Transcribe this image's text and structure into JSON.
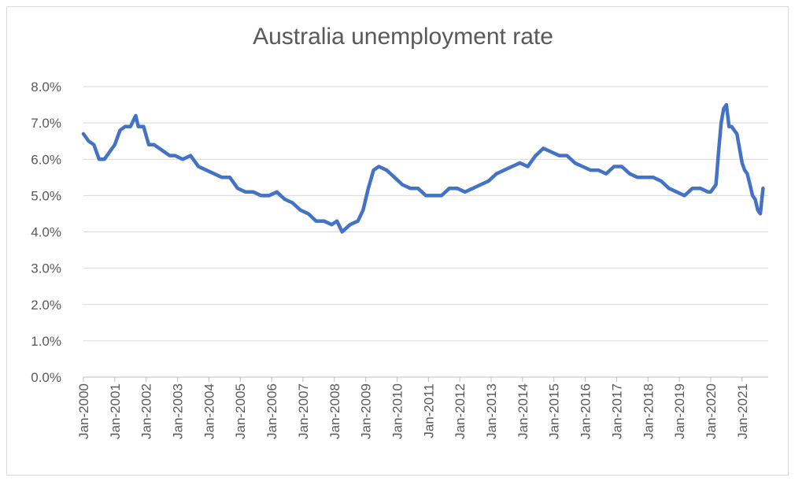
{
  "chart_data": {
    "type": "line",
    "title": "Australia unemployment rate",
    "xlabel": "",
    "ylabel": "",
    "ylim": [
      0,
      8
    ],
    "y_ticks": [
      "0.0%",
      "1.0%",
      "2.0%",
      "3.0%",
      "4.0%",
      "5.0%",
      "6.0%",
      "7.0%",
      "8.0%"
    ],
    "x_ticks": [
      "Jan-2000",
      "Jan-2001",
      "Jan-2002",
      "Jan-2003",
      "Jan-2004",
      "Jan-2005",
      "Jan-2006",
      "Jan-2007",
      "Jan-2008",
      "Jan-2009",
      "Jan-2010",
      "Jan-2011",
      "Jan-2012",
      "Jan-2013",
      "Jan-2014",
      "Jan-2015",
      "Jan-2016",
      "Jan-2017",
      "Jan-2018",
      "Jan-2019",
      "Jan-2020",
      "Jan-2021"
    ],
    "grid": true,
    "legend": "none",
    "color": "#4472c4",
    "series": [
      {
        "x": [
          "2000-01",
          "2000-03",
          "2000-05",
          "2000-07",
          "2000-09",
          "2000-11",
          "2001-01",
          "2001-03",
          "2001-05",
          "2001-07",
          "2001-09",
          "2001-10",
          "2001-12",
          "2002-02",
          "2002-04",
          "2002-06",
          "2002-08",
          "2002-10",
          "2002-12",
          "2003-03",
          "2003-06",
          "2003-09",
          "2003-12",
          "2004-03",
          "2004-06",
          "2004-09",
          "2004-12",
          "2005-03",
          "2005-06",
          "2005-09",
          "2005-12",
          "2006-03",
          "2006-06",
          "2006-09",
          "2006-12",
          "2007-03",
          "2007-06",
          "2007-09",
          "2007-12",
          "2008-02",
          "2008-04",
          "2008-07",
          "2008-10",
          "2008-12",
          "2009-02",
          "2009-04",
          "2009-06",
          "2009-09",
          "2009-12",
          "2010-03",
          "2010-06",
          "2010-09",
          "2010-12",
          "2011-03",
          "2011-06",
          "2011-09",
          "2011-12",
          "2012-03",
          "2012-06",
          "2012-09",
          "2012-12",
          "2013-03",
          "2013-06",
          "2013-09",
          "2013-12",
          "2014-03",
          "2014-06",
          "2014-09",
          "2014-12",
          "2015-03",
          "2015-06",
          "2015-09",
          "2015-12",
          "2016-03",
          "2016-06",
          "2016-09",
          "2016-12",
          "2017-03",
          "2017-06",
          "2017-09",
          "2017-12",
          "2018-03",
          "2018-06",
          "2018-09",
          "2018-12",
          "2019-03",
          "2019-06",
          "2019-09",
          "2019-12",
          "2020-01",
          "2020-03",
          "2020-04",
          "2020-05",
          "2020-06",
          "2020-07",
          "2020-08",
          "2020-09",
          "2020-10",
          "2020-11",
          "2020-12",
          "2021-01",
          "2021-02",
          "2021-03",
          "2021-04",
          "2021-05",
          "2021-06",
          "2021-07",
          "2021-08",
          "2021-09"
        ],
        "values": [
          6.7,
          6.5,
          6.4,
          6.0,
          6.0,
          6.2,
          6.4,
          6.8,
          6.9,
          6.9,
          7.2,
          6.9,
          6.9,
          6.4,
          6.4,
          6.3,
          6.2,
          6.1,
          6.1,
          6.0,
          6.1,
          5.8,
          5.7,
          5.6,
          5.5,
          5.5,
          5.2,
          5.1,
          5.1,
          5.0,
          5.0,
          5.1,
          4.9,
          4.8,
          4.6,
          4.5,
          4.3,
          4.3,
          4.2,
          4.3,
          4.0,
          4.2,
          4.3,
          4.6,
          5.2,
          5.7,
          5.8,
          5.7,
          5.5,
          5.3,
          5.2,
          5.2,
          5.0,
          5.0,
          5.0,
          5.2,
          5.2,
          5.1,
          5.2,
          5.3,
          5.4,
          5.6,
          5.7,
          5.8,
          5.9,
          5.8,
          6.1,
          6.3,
          6.2,
          6.1,
          6.1,
          5.9,
          5.8,
          5.7,
          5.7,
          5.6,
          5.8,
          5.8,
          5.6,
          5.5,
          5.5,
          5.5,
          5.4,
          5.2,
          5.1,
          5.0,
          5.2,
          5.2,
          5.1,
          5.1,
          5.3,
          6.2,
          7.0,
          7.4,
          7.5,
          6.9,
          6.9,
          6.8,
          6.7,
          6.3,
          5.9,
          5.7,
          5.6,
          5.3,
          5.0,
          4.9,
          4.6,
          4.5,
          5.2
        ]
      }
    ]
  }
}
